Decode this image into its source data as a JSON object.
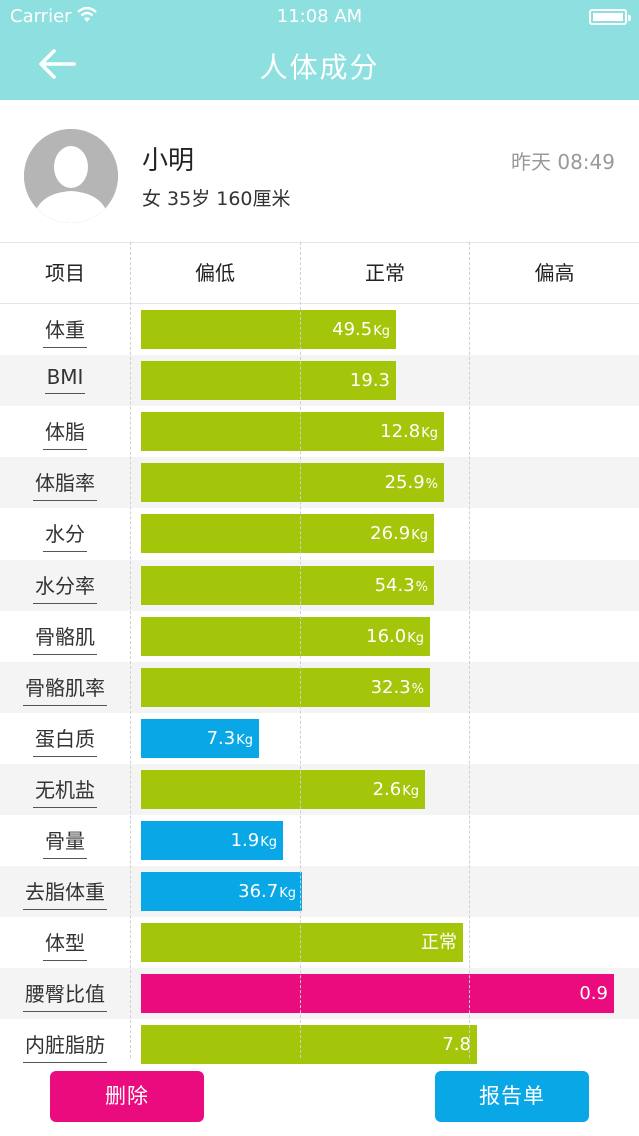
{
  "status_bar": {
    "carrier": "Carrier",
    "time": "11:08 AM"
  },
  "nav": {
    "title": "人体成分"
  },
  "profile": {
    "name": "小明",
    "info": "女  35岁 160厘米",
    "timestamp": "昨天 08:49"
  },
  "table": {
    "headers": {
      "item": "项目",
      "low": "偏低",
      "normal": "正常",
      "high": "偏高"
    },
    "rows": [
      {
        "label": "体重",
        "value": "49.5",
        "unit": "Kg",
        "color": "#a4c60a",
        "level": 0.54
      },
      {
        "label": "BMI",
        "value": "19.3",
        "unit": "",
        "color": "#a4c60a",
        "level": 0.54
      },
      {
        "label": "体脂",
        "value": "12.8",
        "unit": "Kg",
        "color": "#a4c60a",
        "level": 0.64
      },
      {
        "label": "体脂率",
        "value": "25.9",
        "unit": "%",
        "color": "#a4c60a",
        "level": 0.64
      },
      {
        "label": "水分",
        "value": "26.9",
        "unit": "Kg",
        "color": "#a4c60a",
        "level": 0.62
      },
      {
        "label": "水分率",
        "value": "54.3",
        "unit": "%",
        "color": "#a4c60a",
        "level": 0.62
      },
      {
        "label": "骨骼肌",
        "value": "16.0",
        "unit": "Kg",
        "color": "#a4c60a",
        "level": 0.61
      },
      {
        "label": "骨骼肌率",
        "value": "32.3",
        "unit": "%",
        "color": "#a4c60a",
        "level": 0.61
      },
      {
        "label": "蛋白质",
        "value": "7.3",
        "unit": "Kg",
        "color": "#0aa7e7",
        "level": 0.25
      },
      {
        "label": "无机盐",
        "value": "2.6",
        "unit": "Kg",
        "color": "#a4c60a",
        "level": 0.6
      },
      {
        "label": "骨量",
        "value": "1.9",
        "unit": "Kg",
        "color": "#0aa7e7",
        "level": 0.3
      },
      {
        "label": "去脂体重",
        "value": "36.7",
        "unit": "Kg",
        "color": "#0aa7e7",
        "level": 0.34
      },
      {
        "label": "体型",
        "value": "正常",
        "unit": "",
        "color": "#a4c60a",
        "level": 0.68
      },
      {
        "label": "腰臀比值",
        "value": "0.9",
        "unit": "",
        "color": "#ea0b7e",
        "level": 1.0
      },
      {
        "label": "内脏脂肪",
        "value": "7.8",
        "unit": "",
        "color": "#a4c60a",
        "level": 0.71
      }
    ]
  },
  "buttons": {
    "delete": "删除",
    "report": "报告单"
  }
}
